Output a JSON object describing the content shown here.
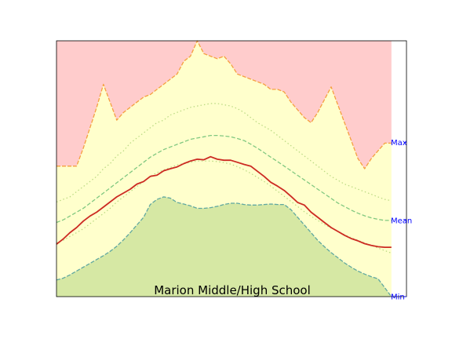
{
  "chart_data": {
    "type": "area",
    "title": "Marion Middle/High School",
    "xlabel": "",
    "ylabel": "",
    "grid": false,
    "legend": "none",
    "ylim": [
      0,
      1
    ],
    "y_tick_labels": [
      {
        "label": "Max",
        "value": 0.603
      },
      {
        "label": "Mean",
        "value": 0.298
      },
      {
        "label": "Min",
        "value": 0.0
      }
    ],
    "x": [
      0,
      2,
      4,
      6,
      8,
      10,
      12,
      14,
      16,
      18,
      20,
      22,
      24,
      26,
      28,
      30,
      32,
      34,
      36,
      38,
      40,
      42,
      44,
      46,
      48,
      50,
      52,
      54,
      56,
      58,
      60,
      62,
      64,
      66,
      68,
      70,
      72,
      74,
      76,
      78,
      80,
      82,
      84,
      86,
      88,
      90,
      92,
      94,
      96,
      98,
      100
    ],
    "xlim": [
      0,
      104.5
    ],
    "colors": {
      "max_fill": "#ffcccc",
      "range_fill": "#ffffcc",
      "min_fill": "#d6e8a4",
      "max_line": "#f5a040",
      "min_line": "#60a8a0",
      "mean_band": "#80c880",
      "mean_band_inner": "#b8d880",
      "current": "#cc2a22",
      "ticks": "#0000ff"
    },
    "series": [
      {
        "role": "max",
        "values": [
          0.51,
          0.51,
          0.51,
          0.51,
          0.58,
          0.66,
          0.74,
          0.83,
          0.76,
          0.69,
          0.72,
          0.74,
          0.76,
          0.78,
          0.79,
          0.81,
          0.83,
          0.85,
          0.87,
          0.92,
          0.94,
          1.0,
          0.95,
          0.94,
          0.93,
          0.94,
          0.91,
          0.87,
          0.86,
          0.85,
          0.84,
          0.83,
          0.81,
          0.81,
          0.8,
          0.76,
          0.73,
          0.7,
          0.68,
          0.72,
          0.77,
          0.82,
          0.75,
          0.68,
          0.61,
          0.54,
          0.5,
          0.54,
          0.57,
          0.6,
          0.6
        ]
      },
      {
        "role": "mean_upper",
        "values": [
          0.37,
          0.38,
          0.39,
          0.41,
          0.43,
          0.45,
          0.47,
          0.5,
          0.52,
          0.55,
          0.57,
          0.6,
          0.62,
          0.64,
          0.66,
          0.68,
          0.69,
          0.71,
          0.72,
          0.73,
          0.74,
          0.745,
          0.75,
          0.755,
          0.755,
          0.75,
          0.745,
          0.735,
          0.72,
          0.7,
          0.68,
          0.665,
          0.65,
          0.63,
          0.61,
          0.59,
          0.57,
          0.55,
          0.53,
          0.51,
          0.49,
          0.47,
          0.455,
          0.44,
          0.43,
          0.42,
          0.41,
          0.4,
          0.39,
          0.38,
          0.375
        ]
      },
      {
        "role": "mean_plus",
        "values": [
          0.29,
          0.3,
          0.315,
          0.33,
          0.345,
          0.365,
          0.385,
          0.405,
          0.425,
          0.445,
          0.465,
          0.485,
          0.505,
          0.525,
          0.545,
          0.56,
          0.575,
          0.585,
          0.595,
          0.605,
          0.615,
          0.62,
          0.625,
          0.63,
          0.63,
          0.628,
          0.625,
          0.618,
          0.61,
          0.596,
          0.58,
          0.563,
          0.545,
          0.528,
          0.51,
          0.492,
          0.474,
          0.456,
          0.438,
          0.42,
          0.402,
          0.384,
          0.366,
          0.352,
          0.338,
          0.326,
          0.316,
          0.308,
          0.302,
          0.298,
          0.298
        ]
      },
      {
        "role": "mean_lower",
        "values": [
          0.21,
          0.22,
          0.235,
          0.25,
          0.265,
          0.285,
          0.305,
          0.325,
          0.345,
          0.37,
          0.39,
          0.41,
          0.43,
          0.45,
          0.47,
          0.485,
          0.495,
          0.505,
          0.515,
          0.52,
          0.525,
          0.53,
          0.53,
          0.53,
          0.528,
          0.524,
          0.518,
          0.508,
          0.496,
          0.482,
          0.466,
          0.45,
          0.432,
          0.412,
          0.392,
          0.372,
          0.352,
          0.332,
          0.314,
          0.298,
          0.282,
          0.268,
          0.255,
          0.242,
          0.23,
          0.22,
          0.21,
          0.2,
          0.19,
          0.18,
          0.17
        ]
      },
      {
        "role": "current",
        "values": [
          0.205,
          0.225,
          0.25,
          0.27,
          0.295,
          0.315,
          0.33,
          0.35,
          0.37,
          0.39,
          0.405,
          0.42,
          0.44,
          0.45,
          0.47,
          0.475,
          0.492,
          0.5,
          0.507,
          0.52,
          0.53,
          0.537,
          0.535,
          0.547,
          0.537,
          0.533,
          0.533,
          0.525,
          0.517,
          0.51,
          0.49,
          0.47,
          0.447,
          0.432,
          0.415,
          0.392,
          0.368,
          0.358,
          0.33,
          0.31,
          0.29,
          0.27,
          0.255,
          0.24,
          0.227,
          0.218,
          0.207,
          0.2,
          0.195,
          0.193,
          0.193
        ]
      },
      {
        "role": "min",
        "values": [
          0.065,
          0.072,
          0.085,
          0.1,
          0.115,
          0.13,
          0.145,
          0.16,
          0.177,
          0.197,
          0.222,
          0.25,
          0.28,
          0.31,
          0.36,
          0.38,
          0.39,
          0.385,
          0.368,
          0.362,
          0.355,
          0.345,
          0.345,
          0.348,
          0.353,
          0.36,
          0.365,
          0.365,
          0.36,
          0.358,
          0.358,
          0.36,
          0.362,
          0.36,
          0.36,
          0.34,
          0.31,
          0.28,
          0.25,
          0.22,
          0.195,
          0.172,
          0.152,
          0.132,
          0.115,
          0.1,
          0.088,
          0.078,
          0.07,
          0.035,
          0.0
        ]
      }
    ]
  }
}
